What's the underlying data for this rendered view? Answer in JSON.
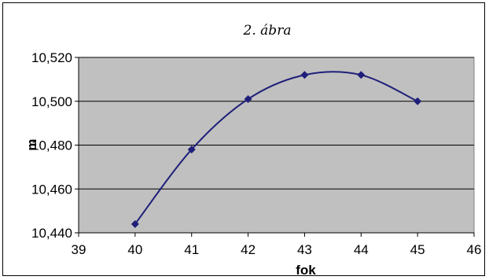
{
  "chart_data": {
    "type": "line",
    "title": "2. ábra",
    "xlabel": "fok",
    "ylabel": "m",
    "xlim": [
      39,
      46
    ],
    "ylim": [
      10.44,
      10.52
    ],
    "x_ticks": [
      "39",
      "40",
      "41",
      "42",
      "43",
      "44",
      "45",
      "46"
    ],
    "y_ticks": [
      "10,440",
      "10,460",
      "10,480",
      "10,500",
      "10,520"
    ],
    "grid": "horizontal",
    "smooth": true,
    "series": [
      {
        "x": [
          40,
          41,
          42,
          43,
          44,
          45
        ],
        "y": [
          10.444,
          10.478,
          10.501,
          10.512,
          10.512,
          10.5
        ]
      }
    ],
    "colors": {
      "plot_background": "#c0c0c0",
      "series_line": "#1f1f7a",
      "marker": "#1f1f7a"
    }
  }
}
